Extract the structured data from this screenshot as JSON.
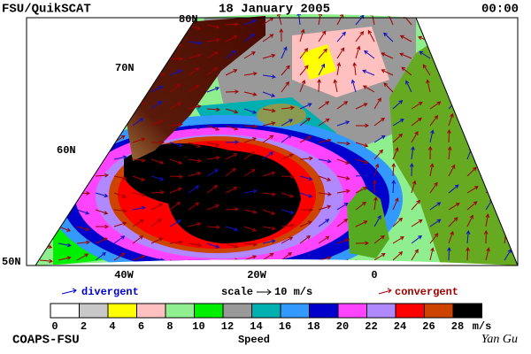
{
  "header": {
    "left": "FSU/QuikSCAT",
    "date": "18 January 2005",
    "time": "00:00"
  },
  "map": {
    "lat_labels": [
      "80N",
      "70N",
      "60N",
      "50N"
    ],
    "lon_labels": [
      "40W",
      "20W",
      "0"
    ]
  },
  "legend": {
    "divergent": "divergent",
    "scale": "scale",
    "scale_value": "10 m/s",
    "convergent": "convergent"
  },
  "colorbar": {
    "colors": [
      "#ffffff",
      "#c8c8c8",
      "#ffff00",
      "#ffc0c0",
      "#90f090",
      "#00ee00",
      "#999999",
      "#00b0b0",
      "#3399ff",
      "#0000cc",
      "#ff44ff",
      "#b088ff",
      "#ff0000",
      "#cc4400",
      "#000000"
    ],
    "ticks": [
      0,
      2,
      4,
      6,
      8,
      10,
      12,
      14,
      16,
      18,
      20,
      22,
      24,
      26,
      28
    ],
    "unit": "m/s",
    "label": "Speed"
  },
  "footer": {
    "left": "COAPS-FSU",
    "right": "Yan Gu"
  }
}
